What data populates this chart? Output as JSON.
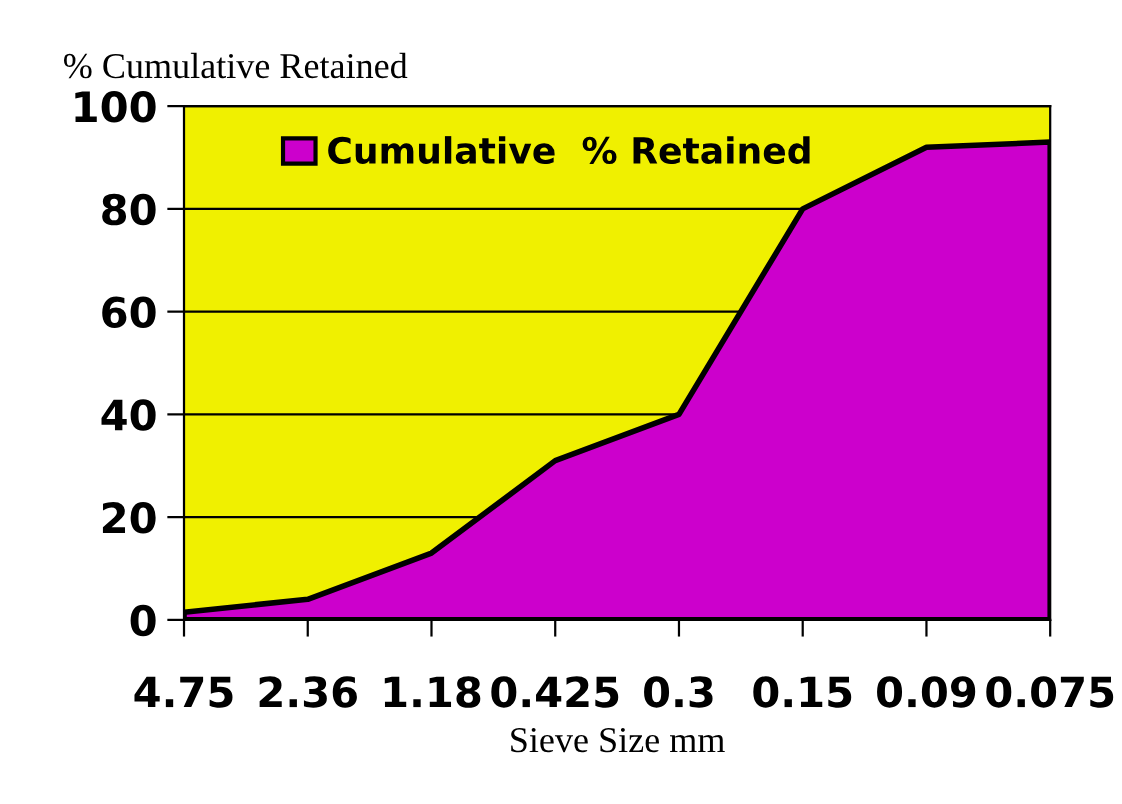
{
  "chart_data": {
    "type": "area",
    "ylabel": "% Cumulative Retained",
    "xlabel": "Sieve Size mm",
    "categories": [
      "4.75",
      "2.36",
      "1.18",
      "0.425",
      "0.3",
      "0.15",
      "0.09",
      "0.075"
    ],
    "series": [
      {
        "name": "Cumulative  % Retained",
        "color": "#cc00cc",
        "values": [
          1.5,
          4,
          13,
          31,
          40,
          80,
          92,
          93
        ]
      }
    ],
    "ylim": [
      0,
      100
    ],
    "yticks": [
      0,
      20,
      40,
      60,
      80,
      100
    ],
    "grid": "y",
    "legend": "top"
  }
}
